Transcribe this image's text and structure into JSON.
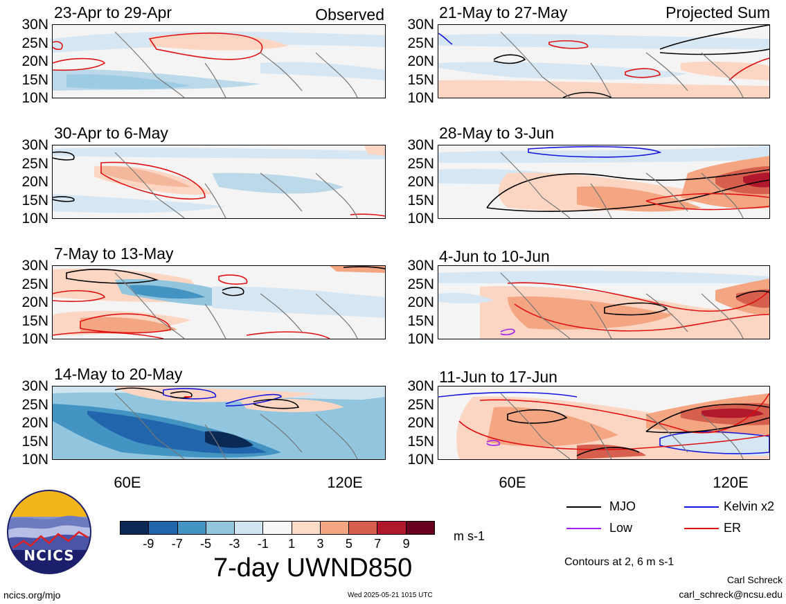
{
  "left_column_label": "Observed",
  "right_column_label": "Projected Sum",
  "panels_left": [
    {
      "title": "23-Apr to 29-Apr"
    },
    {
      "title": "30-Apr to 6-May"
    },
    {
      "title": "7-May to 13-May"
    },
    {
      "title": "14-May to 20-May"
    }
  ],
  "panels_right": [
    {
      "title": "21-May to 27-May"
    },
    {
      "title": "28-May to 3-Jun"
    },
    {
      "title": "4-Jun to 10-Jun"
    },
    {
      "title": "11-Jun to 17-Jun"
    }
  ],
  "lat_labels": [
    "30N",
    "25N",
    "20N",
    "15N",
    "10N"
  ],
  "lon_labels": [
    "60E",
    "120E"
  ],
  "colorbar": {
    "tick_labels": [
      "-9",
      "-7",
      "-5",
      "-3",
      "-1",
      "1",
      "3",
      "5",
      "7",
      "9"
    ],
    "colors": [
      "#0a2a55",
      "#2166ac",
      "#4393c3",
      "#92c5de",
      "#d1e5f0",
      "#f7f7f7",
      "#fddbc7",
      "#f4a582",
      "#d6604d",
      "#b2182b",
      "#67001f"
    ],
    "units": "m s-1",
    "title": "7-day UWND850"
  },
  "legend": {
    "items": [
      {
        "label": "MJO",
        "color": "#000000"
      },
      {
        "label": "Kelvin x2",
        "color": "#1515e0"
      },
      {
        "label": "Low",
        "color": "#a020f0"
      },
      {
        "label": "ER",
        "color": "#e01010"
      }
    ],
    "contours_note": "Contours at 2, 6 m s-1"
  },
  "logo": {
    "text": "NCICS"
  },
  "footer": {
    "url": "ncics.org/mjo",
    "timestamp": "Wed 2025-05-21 1015 UTC",
    "author": "Carl Schreck",
    "email": "carl_schreck@ncsu.edu"
  }
}
